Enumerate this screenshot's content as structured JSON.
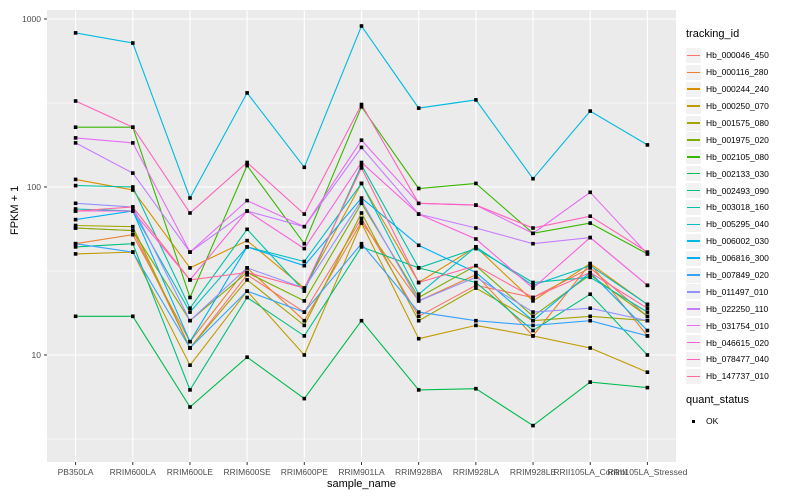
{
  "chart_data": {
    "type": "line",
    "title": "",
    "xlabel": "sample_name",
    "ylabel": "FPKM + 1",
    "legend_title": "tracking_id",
    "legend2_title": "quant_status",
    "legend2_items": [
      "OK"
    ],
    "y_scale": "log10",
    "y_ticks": [
      10,
      100,
      1000
    ],
    "y_tick_labels": [
      "10",
      "100",
      "1000"
    ],
    "y_minor_ticks": [
      3.16,
      31.6,
      316
    ],
    "ylim": [
      2.3,
      1130
    ],
    "grid": true,
    "legend_position": "right",
    "x_categories": [
      "PB350LA",
      "RRIM600LA",
      "RRIM600LE",
      "RRIM600SE",
      "RRIM600PE",
      "RRIM901LA",
      "RRIM928BA",
      "RRIM928LA",
      "RRIM928LE",
      "RRII105LA_Control",
      "RRII105LA_Stressed"
    ],
    "series": [
      {
        "name": "Hb_000046_450",
        "color": "#F8766D",
        "values": [
          57,
          55,
          11,
          30,
          18,
          65,
          17,
          26,
          22,
          33,
          17
        ]
      },
      {
        "name": "Hb_000116_280",
        "color": "#EA8331",
        "values": [
          46,
          52,
          12,
          33,
          16,
          62,
          21,
          30,
          13,
          35,
          13
        ]
      },
      {
        "name": "Hb_000244_240",
        "color": "#D89000",
        "values": [
          111,
          96,
          33,
          48,
          25,
          105,
          27,
          44,
          21,
          35,
          20
        ]
      },
      {
        "name": "Hb_000250_070",
        "color": "#C09B00",
        "values": [
          40,
          41,
          8.7,
          24,
          10,
          61,
          12.5,
          15,
          13,
          11,
          7.9
        ]
      },
      {
        "name": "Hb_001575_080",
        "color": "#A3A500",
        "values": [
          59,
          58,
          11,
          28,
          15,
          70,
          16,
          25,
          16,
          17,
          16
        ]
      },
      {
        "name": "Hb_001975_020",
        "color": "#7CAE00",
        "values": [
          57,
          55,
          16,
          31,
          21,
          80,
          22,
          34,
          17,
          30,
          17
        ]
      },
      {
        "name": "Hb_002105_080",
        "color": "#39B600",
        "values": [
          227,
          227,
          22,
          134,
          46,
          300,
          98,
          105,
          53,
          61,
          40
        ]
      },
      {
        "name": "Hb_002133_030",
        "color": "#00BB4E",
        "values": [
          17,
          17,
          4.9,
          9.7,
          5.5,
          16,
          6.2,
          6.3,
          3.8,
          6.9,
          6.4
        ]
      },
      {
        "name": "Hb_002493_090",
        "color": "#00BF7D",
        "values": [
          44,
          46,
          6.2,
          22,
          13,
          44,
          33,
          27,
          14,
          23,
          10
        ]
      },
      {
        "name": "Hb_003018_160",
        "color": "#00C1A3",
        "values": [
          102,
          100,
          19,
          56,
          24,
          135,
          33,
          43,
          27,
          29,
          18
        ]
      },
      {
        "name": "Hb_005295_040",
        "color": "#00BFC4",
        "values": [
          74,
          72,
          18,
          44,
          36,
          105,
          23,
          44,
          26,
          34,
          20
        ]
      },
      {
        "name": "Hb_006002_030",
        "color": "#00BAE0",
        "values": [
          826,
          720,
          86,
          363,
          131,
          908,
          295,
          330,
          112,
          283,
          178
        ]
      },
      {
        "name": "Hb_006816_300",
        "color": "#00B0F6",
        "values": [
          64,
          72,
          12,
          44,
          34,
          86,
          45,
          31,
          16,
          31,
          14
        ]
      },
      {
        "name": "Hb_007849_020",
        "color": "#35A2FF",
        "values": [
          46,
          41,
          11,
          24,
          18,
          46,
          18,
          16,
          15,
          16,
          13
        ]
      },
      {
        "name": "Hb_011497_010",
        "color": "#9590FF",
        "values": [
          80,
          76,
          16,
          33,
          25,
          83,
          21,
          29,
          18,
          19,
          16
        ]
      },
      {
        "name": "Hb_022250_110",
        "color": "#C77CFF",
        "values": [
          183,
          121,
          41,
          72,
          58,
          172,
          69,
          57,
          46,
          50,
          26
        ]
      },
      {
        "name": "Hb_031754_010",
        "color": "#E76BF3",
        "values": [
          196,
          183,
          41,
          83,
          58,
          190,
          80,
          78,
          53,
          93,
          40
        ]
      },
      {
        "name": "Hb_046615_020",
        "color": "#FA62DB",
        "values": [
          72,
          72,
          28,
          72,
          43,
          140,
          69,
          49,
          25,
          50,
          26
        ]
      },
      {
        "name": "Hb_078477_040",
        "color": "#FF62BC",
        "values": [
          325,
          227,
          70,
          140,
          69,
          310,
          80,
          78,
          57,
          67,
          41
        ]
      },
      {
        "name": "Hb_147737_010",
        "color": "#FF6A98",
        "values": [
          72,
          76,
          28,
          31,
          25,
          130,
          27,
          34,
          22,
          31,
          19
        ]
      }
    ]
  },
  "colors": {
    "panel_bg": "#EBEBEB",
    "grid": "#FFFFFF",
    "tick_text": "#4D4D4D",
    "tick_mark": "#333333",
    "legend_key_bg": "#F2F2F2",
    "point": "#000000"
  }
}
